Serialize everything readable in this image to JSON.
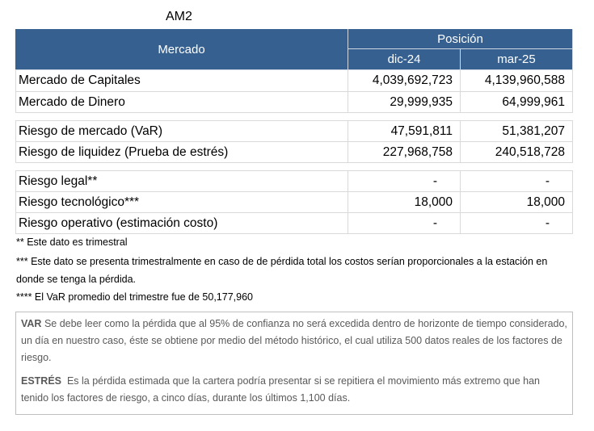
{
  "title": "AM2",
  "header": {
    "mercado": "Mercado",
    "posicion": "Posición",
    "col1": "dic-24",
    "col2": "mar-25"
  },
  "group1": [
    {
      "label": "Mercado de Capitales",
      "v1": "4,039,692,723",
      "v2": "4,139,960,588"
    },
    {
      "label": "Mercado de Dinero",
      "v1": "29,999,935",
      "v2": "64,999,961"
    }
  ],
  "group2": [
    {
      "label": "Riesgo de mercado (VaR)",
      "v1": "47,591,811",
      "v2": "51,381,207"
    },
    {
      "label": "Riesgo de liquidez (Prueba de estrés)",
      "v1": "227,968,758",
      "v2": "240,518,728"
    }
  ],
  "group3": [
    {
      "label": "Riesgo legal**",
      "v1": "-",
      "v2": "-"
    },
    {
      "label": "Riesgo tecnológico***",
      "v1": "18,000",
      "v2": "18,000"
    },
    {
      "label": "Riesgo operativo (estimación costo)",
      "v1": "-",
      "v2": "-"
    }
  ],
  "notes": {
    "n1": "** Este dato es trimestral",
    "n2": "*** Este dato se presenta trimestralmente en caso de de pérdida total los costos serían proporcionales a la estación en donde se tenga la pérdida.",
    "n3": "**** El VaR promedio del trimestre fue de 50,177,960"
  },
  "definitions": {
    "var_term": "VAR",
    "var_text": " Se debe leer como la pérdida que al 95% de confianza no será excedida dentro de horizonte de tiempo considerado, un día en nuestro caso, éste se obtiene por medio del método histórico, el cual utiliza 500 datos reales de los factores de riesgo.",
    "estres_term": "ESTRÉS",
    "estres_text": "  Es la pérdida estimada que la cartera podría presentar si se repitiera el movimiento más extremo que han tenido los factores de riesgo, a cinco días, durante los últimos 1,100 días."
  }
}
